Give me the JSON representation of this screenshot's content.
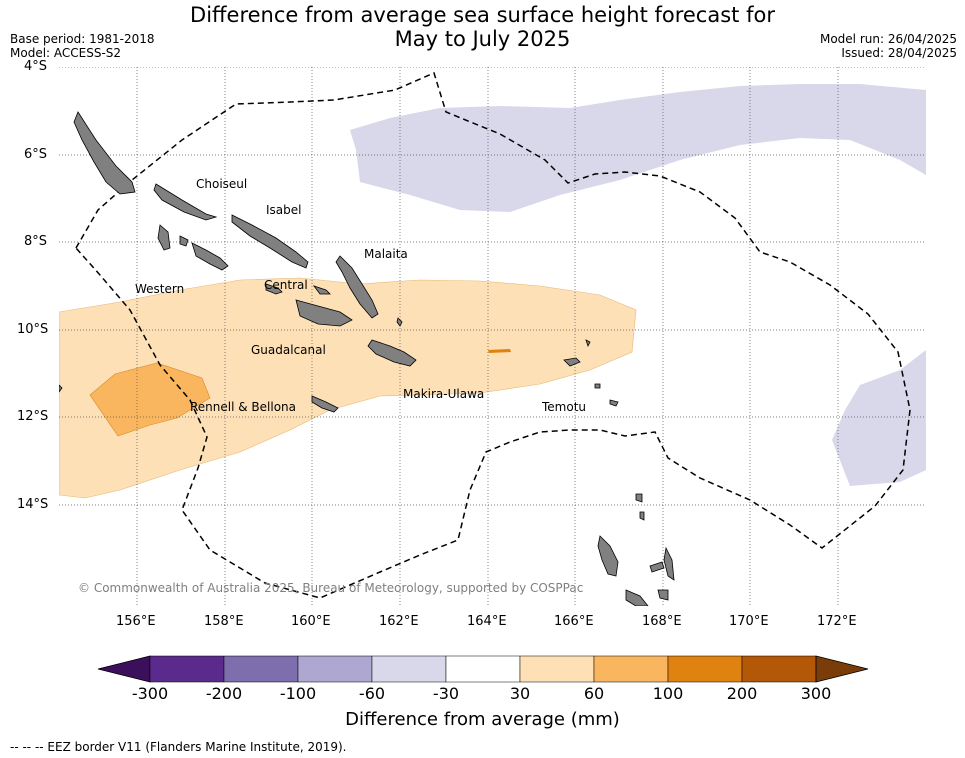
{
  "header": {
    "title_line1": "Difference from average sea surface height forecast for",
    "title_line2": "May to July 2025",
    "base_period": "Base period: 1981-2018",
    "model": "Model: ACCESS-S2",
    "model_run": "Model run: 26/04/2025",
    "issued": "Issued: 28/04/2025"
  },
  "map": {
    "lat_labels": [
      "4°S",
      "6°S",
      "8°S",
      "10°S",
      "12°S",
      "14°S"
    ],
    "lon_labels": [
      "156°E",
      "158°E",
      "160°E",
      "162°E",
      "164°E",
      "166°E",
      "168°E",
      "170°E",
      "172°E"
    ],
    "province_labels": [
      "Choiseul",
      "Isabel",
      "Malaita",
      "Western",
      "Central",
      "Guadalcanal",
      "Makira-Ulawa",
      "Rennell & Bellona",
      "Temotu"
    ],
    "copyright": "© Commonwealth of Australia 2025, Bureau of Meteorology, supported by COSPPac",
    "land_color": "#808080"
  },
  "colorbar": {
    "tick_labels": [
      "-300",
      "-200",
      "-100",
      "-60",
      "-30",
      "30",
      "60",
      "100",
      "200",
      "300"
    ],
    "colors": [
      "#3b0f5c",
      "#5a2a8c",
      "#7e6ead",
      "#ada7d1",
      "#d8d8ea",
      "#ffffff",
      "#fde0b6",
      "#fab65f",
      "#e0820f",
      "#b35806",
      "#7a3d0a"
    ],
    "label": "Difference from average (mm)"
  },
  "footer": {
    "eez_note": "--  --  -- EEZ border V11 (Flanders Marine Institute, 2019)."
  }
}
